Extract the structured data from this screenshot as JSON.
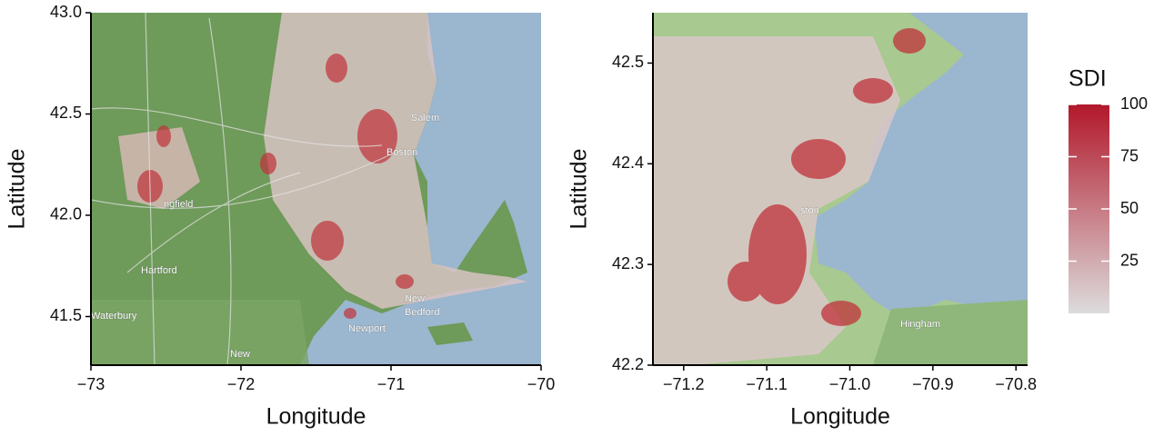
{
  "chart_data": [
    {
      "type": "map",
      "xlabel": "Longitude",
      "ylabel": "Latitude",
      "xlim": [
        -73,
        -70
      ],
      "ylim": [
        41.26,
        43.0
      ],
      "xticks": [
        {
          "value": -73,
          "label": "−73"
        },
        {
          "value": -72,
          "label": "−72"
        },
        {
          "value": -71,
          "label": "−71"
        },
        {
          "value": -70,
          "label": "−70"
        }
      ],
      "yticks": [
        {
          "value": 41.5,
          "label": "41.5"
        },
        {
          "value": 42.0,
          "label": "42.0"
        },
        {
          "value": 42.5,
          "label": "42.5"
        },
        {
          "value": 43.0,
          "label": "43.0"
        }
      ],
      "places": [
        "Salem",
        "Boston",
        "ngfield",
        "Hartford",
        "Waterbury",
        "Newport",
        "New",
        "Bedford",
        "New"
      ]
    },
    {
      "type": "map",
      "xlabel": "Longitude",
      "ylabel": "Latitude",
      "xlim": [
        -71.237,
        -70.786
      ],
      "ylim": [
        42.2,
        42.55
      ],
      "xticks": [
        {
          "value": -71.2,
          "label": "−71.2"
        },
        {
          "value": -71.1,
          "label": "−71.1"
        },
        {
          "value": -71.0,
          "label": "−71.0"
        },
        {
          "value": -70.9,
          "label": "−70.9"
        },
        {
          "value": -70.8,
          "label": "−70.8"
        }
      ],
      "yticks": [
        {
          "value": 42.2,
          "label": "42.2"
        },
        {
          "value": 42.3,
          "label": "42.3"
        },
        {
          "value": 42.4,
          "label": "42.4"
        },
        {
          "value": 42.5,
          "label": "42.5"
        }
      ],
      "places": [
        "ston",
        "Hingham"
      ]
    }
  ],
  "colorbar": {
    "title": "SDI",
    "lim": [
      0,
      100
    ],
    "ticks": [
      25,
      50,
      75,
      100
    ],
    "colors": [
      "#dcdcdc",
      "#b2182b"
    ]
  }
}
